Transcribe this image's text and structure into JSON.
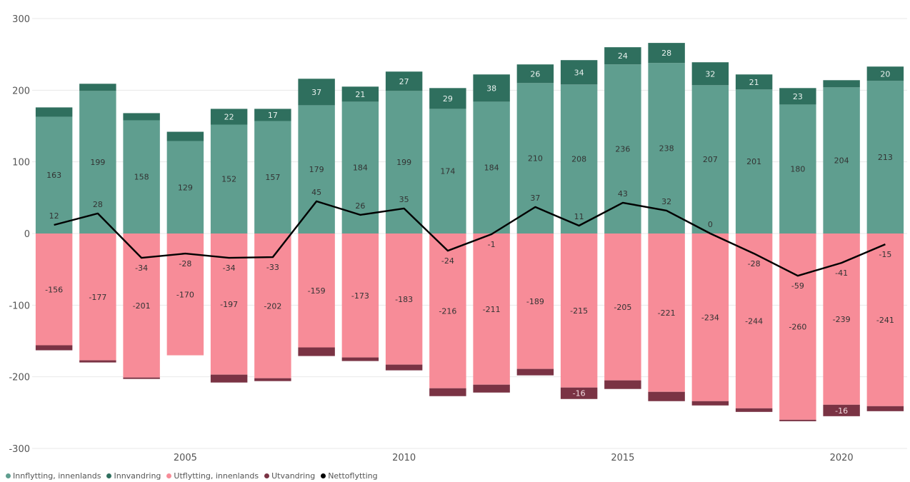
{
  "chart_data": {
    "type": "bar",
    "years": [
      2002,
      2003,
      2004,
      2005,
      2006,
      2007,
      2008,
      2009,
      2010,
      2011,
      2012,
      2013,
      2014,
      2015,
      2016,
      2017,
      2018,
      2019,
      2020,
      2021
    ],
    "series": [
      {
        "name": "Innflytting, innenlands",
        "color": "#5f9e8f",
        "values": [
          163,
          199,
          158,
          129,
          152,
          157,
          179,
          184,
          199,
          174,
          184,
          210,
          208,
          236,
          238,
          207,
          201,
          180,
          204,
          213
        ],
        "labels": [
          "163",
          "199",
          "158",
          "129",
          "152",
          "157",
          "179",
          "184",
          "199",
          "174",
          "184",
          "210",
          "208",
          "236",
          "238",
          "207",
          "201",
          "180",
          "204",
          "213"
        ]
      },
      {
        "name": "Innvandring",
        "color": "#2f6f5e",
        "values": [
          13,
          10,
          10,
          13,
          22,
          17,
          37,
          21,
          27,
          29,
          38,
          26,
          34,
          24,
          28,
          32,
          21,
          23,
          10,
          20
        ],
        "labels": [
          "",
          "",
          "",
          "",
          "22",
          "17",
          "37",
          "21",
          "27",
          "29",
          "38",
          "26",
          "34",
          "24",
          "28",
          "32",
          "21",
          "23",
          "",
          "20"
        ]
      },
      {
        "name": "Utflytting, innenlands",
        "color": "#f78c98",
        "values": [
          -156,
          -177,
          -201,
          -170,
          -197,
          -202,
          -159,
          -173,
          -183,
          -216,
          -211,
          -189,
          -215,
          -205,
          -221,
          -234,
          -244,
          -260,
          -239,
          -241
        ],
        "labels": [
          "-156",
          "-177",
          "-201",
          "-170",
          "-197",
          "-202",
          "-159",
          "-173",
          "-183",
          "-216",
          "-211",
          "-189",
          "-215",
          "-205",
          "-221",
          "-234",
          "-244",
          "-260",
          "-239",
          "-241"
        ]
      },
      {
        "name": "Utvandring",
        "color": "#7a3344",
        "values": [
          -7,
          -3,
          -2,
          0,
          -11,
          -4,
          -12,
          -5,
          -8,
          -11,
          -11,
          -9,
          -16,
          -12,
          -13,
          -6,
          -5,
          -2,
          -16,
          -7
        ],
        "labels": [
          "",
          "",
          "",
          "",
          "",
          "",
          "",
          "",
          "",
          "",
          "",
          "",
          "-16",
          "",
          "",
          "",
          "",
          "",
          "-16",
          ""
        ]
      },
      {
        "name": "Nettoflytting",
        "color": "#000000",
        "values": [
          12,
          28,
          -34,
          -28,
          -34,
          -33,
          45,
          26,
          35,
          -24,
          -1,
          37,
          11,
          43,
          32,
          0,
          -28,
          -59,
          -41,
          -15
        ],
        "labels": [
          "12",
          "28",
          "-34",
          "-28",
          "-34",
          "-33",
          "45",
          "26",
          "35",
          "-24",
          "-1",
          "37",
          "11",
          "43",
          "32",
          "0",
          "-28",
          "-59",
          "-41",
          "-15"
        ]
      }
    ],
    "x_ticks": [
      "2005",
      "2010",
      "2015",
      "2020"
    ],
    "x_tick_years": [
      2005,
      2010,
      2015,
      2020
    ],
    "y_ticks": [
      "300",
      "200",
      "100",
      "0",
      "-100",
      "-200",
      "-300"
    ],
    "ylim": [
      -300,
      300
    ],
    "grid": true,
    "legend_position": "bottom-left"
  }
}
